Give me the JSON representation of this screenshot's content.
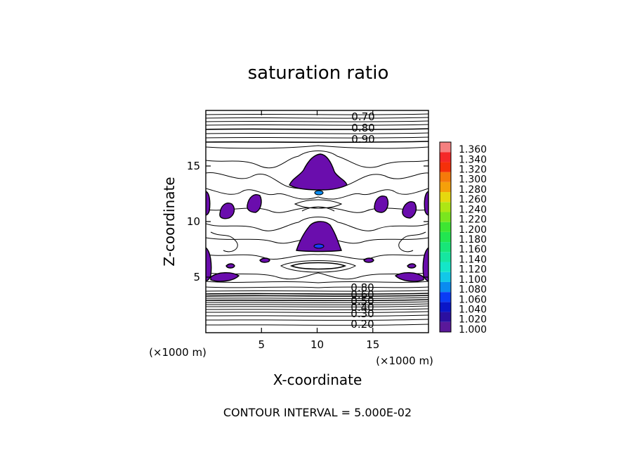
{
  "chart_data": {
    "type": "contour",
    "title": "saturation ratio",
    "xlabel": "X-coordinate",
    "ylabel": "Z-coordinate",
    "x_unit_left": "(×1000 m)",
    "x_unit_right": "(×1000 m)",
    "xlim": [
      0,
      20
    ],
    "ylim": [
      0,
      20
    ],
    "x_ticks": [
      {
        "value": 5,
        "label": "5"
      },
      {
        "value": 10,
        "label": "10"
      },
      {
        "value": 15,
        "label": "15"
      }
    ],
    "y_ticks": [
      {
        "value": 5,
        "label": "5"
      },
      {
        "value": 10,
        "label": "10"
      },
      {
        "value": 15,
        "label": "15"
      }
    ],
    "contour_labels_top": [
      "0.70",
      "0.80",
      "0.90"
    ],
    "contour_labels_bottom": [
      "0.80",
      "0.60",
      "0.50",
      "0.40",
      "0.30",
      "0.20"
    ],
    "note": "CONTOUR INTERVAL = 5.000E-02",
    "fill_color": "#6a0dad",
    "colorbar": [
      {
        "label": "1.000",
        "color": "#5a189a"
      },
      {
        "label": "1.020",
        "color": "#2b0fa0"
      },
      {
        "label": "1.040",
        "color": "#0a16c8"
      },
      {
        "label": "1.060",
        "color": "#0a3cf5"
      },
      {
        "label": "1.080",
        "color": "#0a8cf0"
      },
      {
        "label": "1.100",
        "color": "#12c8e8"
      },
      {
        "label": "1.120",
        "color": "#14e6c8"
      },
      {
        "label": "1.140",
        "color": "#16e6a0"
      },
      {
        "label": "1.160",
        "color": "#18e678"
      },
      {
        "label": "1.180",
        "color": "#22e650"
      },
      {
        "label": "1.200",
        "color": "#3ee632"
      },
      {
        "label": "1.220",
        "color": "#7ae61e"
      },
      {
        "label": "1.240",
        "color": "#aee614"
      },
      {
        "label": "1.260",
        "color": "#e6d80e"
      },
      {
        "label": "1.280",
        "color": "#f5a00a"
      },
      {
        "label": "1.300",
        "color": "#f57a0a"
      },
      {
        "label": "1.320",
        "color": "#f5300a"
      },
      {
        "label": "1.340",
        "color": "#f52828"
      },
      {
        "label": "1.360",
        "color": "#f58080"
      }
    ]
  }
}
